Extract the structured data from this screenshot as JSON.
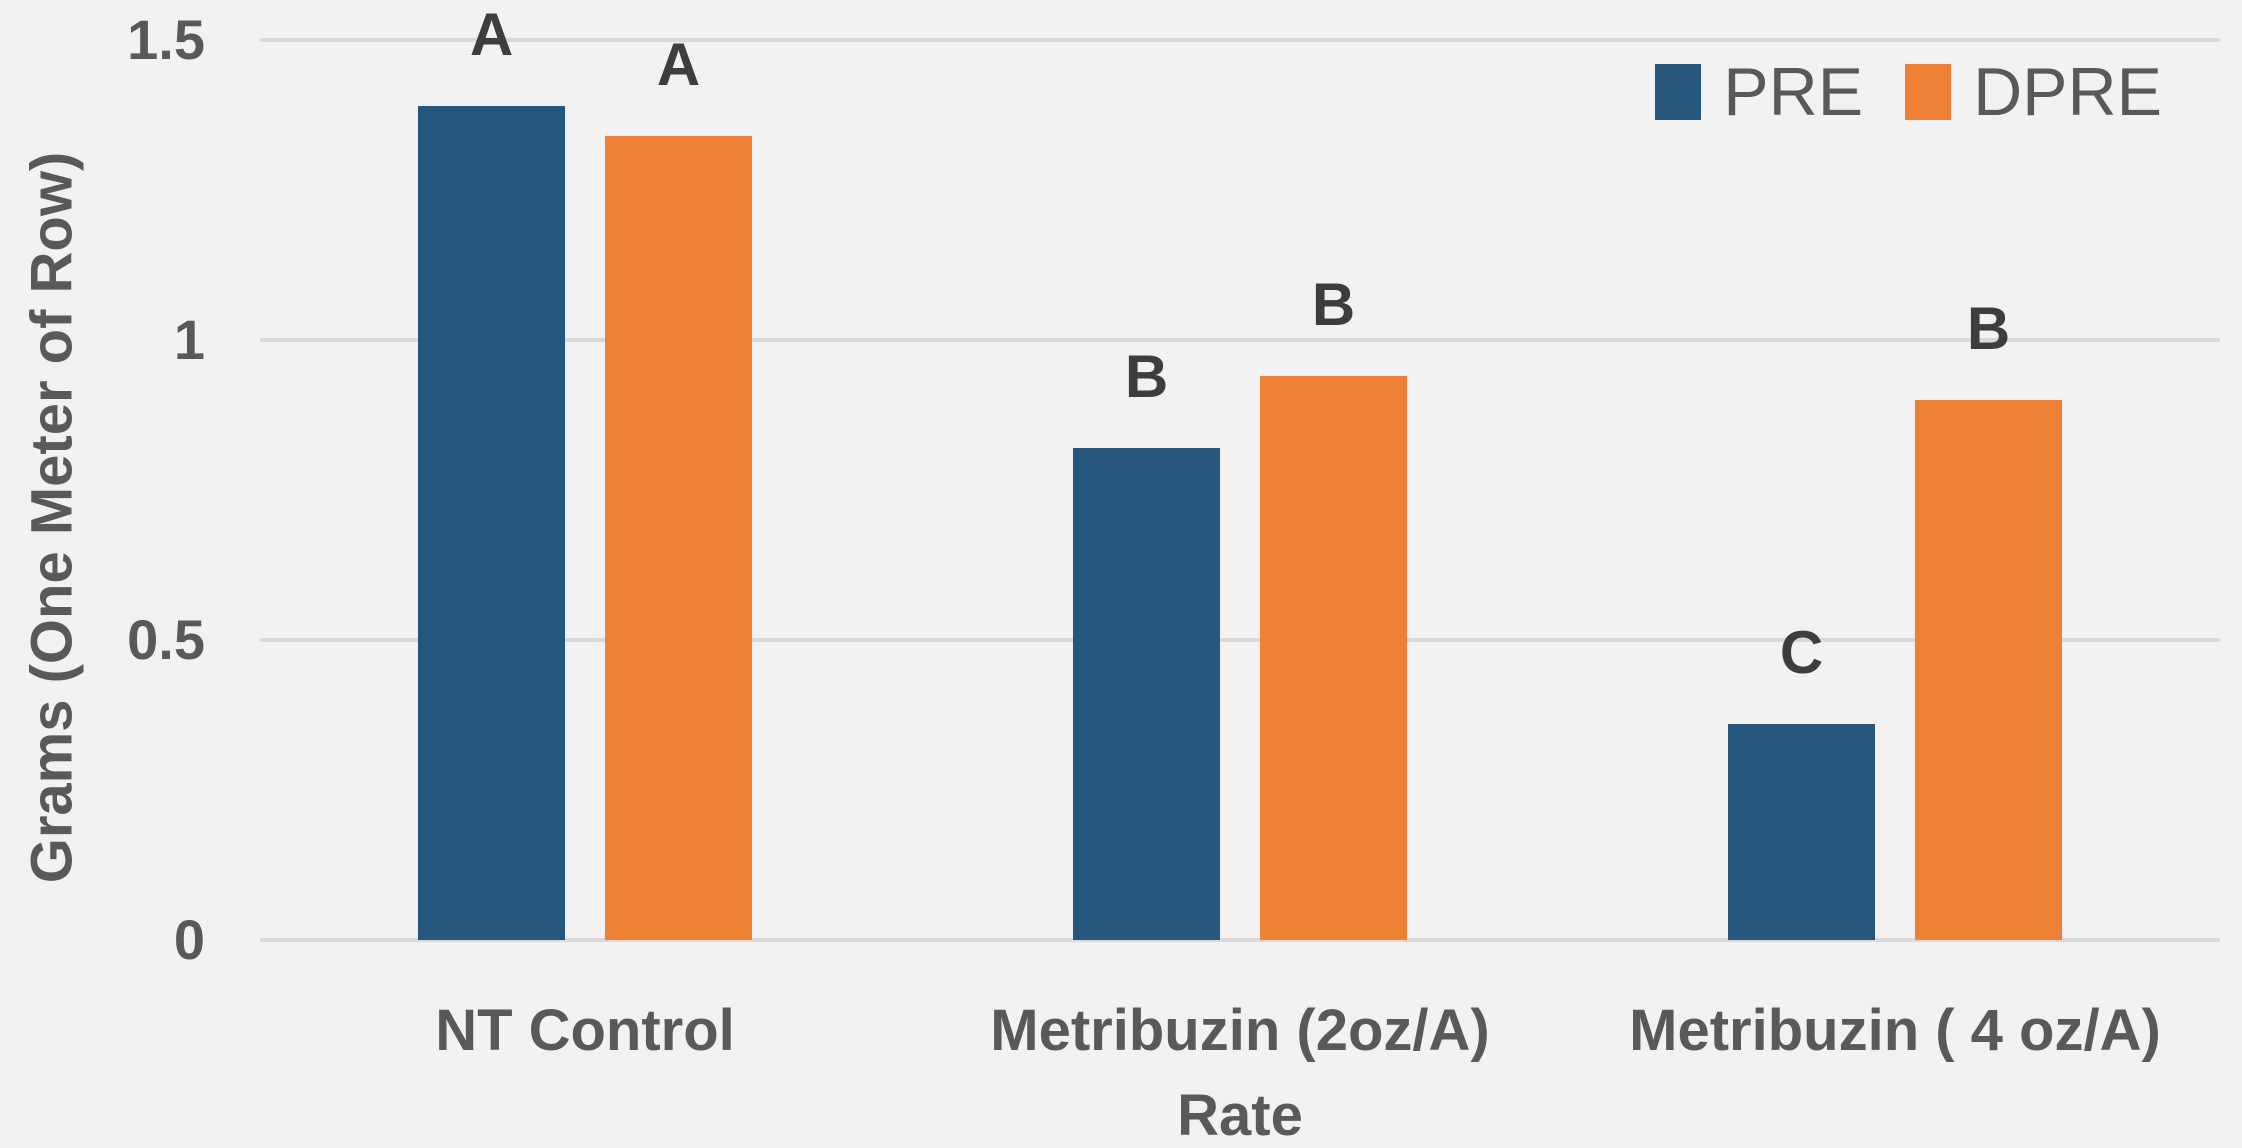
{
  "chart_data": {
    "type": "bar",
    "title": "",
    "xlabel": "Rate",
    "ylabel": "Grams (One Meter of Row)",
    "categories": [
      "NT Control",
      "Metribuzin (2oz/A)",
      "Metribuzin ( 4 oz/A)"
    ],
    "series": [
      {
        "name": "PRE",
        "color": "#26567C",
        "values": [
          1.39,
          0.82,
          0.36
        ],
        "bar_labels": [
          "A",
          "B",
          "C"
        ]
      },
      {
        "name": "DPRE",
        "color": "#EE8135",
        "values": [
          1.34,
          0.94,
          0.9
        ],
        "bar_labels": [
          "A",
          "B",
          "B"
        ]
      }
    ],
    "ylim": [
      0,
      1.5
    ],
    "yticks": [
      0,
      0.5,
      1,
      1.5
    ],
    "ytick_labels": [
      "0",
      "0.5",
      "1",
      "1.5"
    ],
    "grid": "horizontal",
    "legend_position": "top-right",
    "colors": {
      "background": "#F2F2F2",
      "gridline": "#D9D9D9",
      "axis_text": "#595959",
      "bar_label_text": "#3D3D3D"
    }
  }
}
